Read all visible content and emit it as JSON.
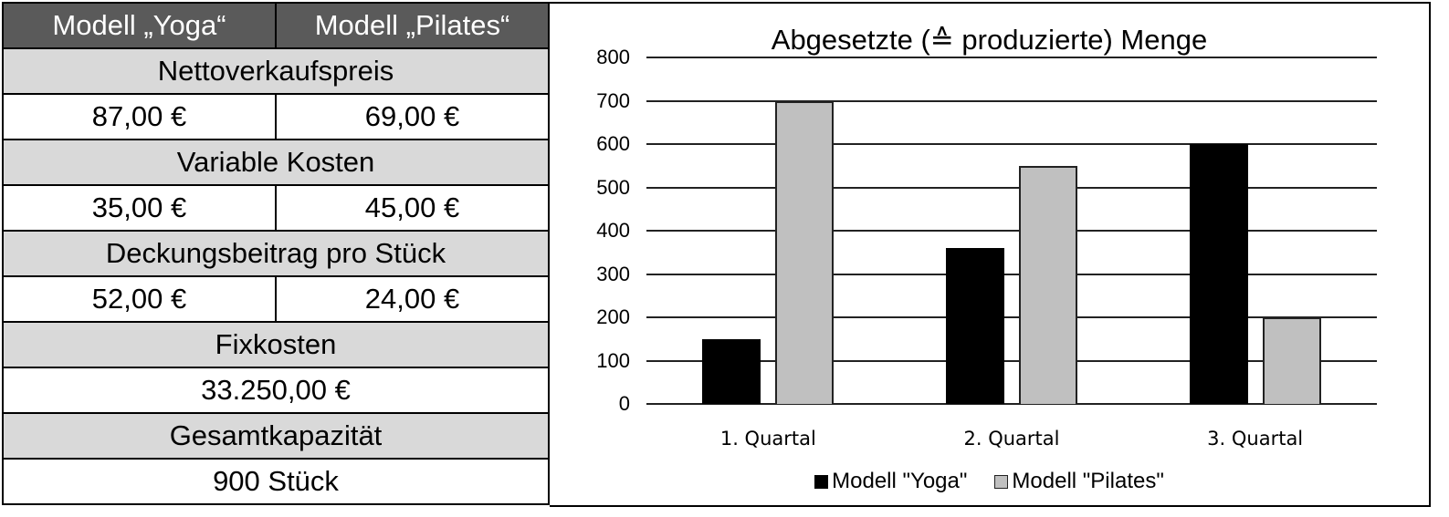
{
  "table": {
    "header": [
      "Modell „Yoga“",
      "Modell „Pilates“"
    ],
    "sections": [
      {
        "label": "Nettoverkaufspreis",
        "values": [
          "87,00 €",
          "69,00 €"
        ]
      },
      {
        "label": "Variable Kosten",
        "values": [
          "35,00 €",
          "45,00 €"
        ]
      },
      {
        "label": "Deckungsbeitrag pro Stück",
        "values": [
          "52,00 €",
          "24,00 €"
        ]
      },
      {
        "label": "Fixkosten",
        "values": [
          "33.250,00 €"
        ]
      },
      {
        "label": "Gesamtkapazität",
        "values": [
          "900 Stück"
        ]
      }
    ]
  },
  "colors": {
    "header_bg": "#5a5a5a",
    "label_bg": "#d9d9d9",
    "yoga": "#000000",
    "pilates": "#c0c0c0"
  },
  "chart_data": {
    "type": "bar",
    "title": "Abgesetzte (≙ produzierte) Menge",
    "categories": [
      "1. Quartal",
      "2. Quartal",
      "3. Quartal"
    ],
    "series": [
      {
        "name": "Modell \"Yoga\"",
        "values": [
          150,
          360,
          600
        ],
        "color": "#000000"
      },
      {
        "name": "Modell \"Pilates\"",
        "values": [
          700,
          550,
          200
        ],
        "color": "#c0c0c0"
      }
    ],
    "xlabel": "",
    "ylabel": "",
    "ylim": [
      0,
      800
    ],
    "yticks": [
      0,
      100,
      200,
      300,
      400,
      500,
      600,
      700,
      800
    ],
    "grid": true,
    "legend_position": "bottom"
  }
}
